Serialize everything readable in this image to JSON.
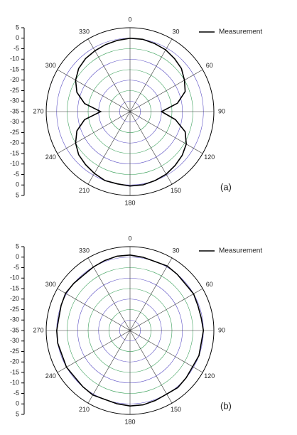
{
  "chart_data": [
    {
      "type": "polar",
      "panel_label": "(a)",
      "theta": [
        0,
        10,
        20,
        30,
        40,
        50,
        60,
        70,
        80,
        90,
        100,
        110,
        120,
        130,
        140,
        150,
        160,
        170,
        180,
        190,
        200,
        210,
        220,
        230,
        240,
        250,
        260,
        270,
        280,
        290,
        300,
        310,
        320,
        330,
        340,
        350
      ],
      "thetaticks": [
        0,
        30,
        60,
        90,
        120,
        150,
        180,
        210,
        240,
        270,
        300,
        330
      ],
      "rlim": [
        -35,
        5
      ],
      "rticks": [
        -35,
        -30,
        -25,
        -20,
        -15,
        -10,
        -5,
        0,
        5
      ],
      "grid": true,
      "series": [
        {
          "name": "Measurement",
          "color": "#000000",
          "values": [
            0,
            0,
            -0.5,
            -1,
            -2,
            -3,
            -5,
            -7,
            -12,
            -20,
            -13,
            -7,
            -4,
            -2.5,
            -1.5,
            -0.5,
            0,
            0.5,
            0.5,
            0,
            0,
            -1,
            -2,
            -3,
            -5,
            -8,
            -13,
            -21,
            -13,
            -8,
            -5,
            -3,
            -2,
            -1.5,
            -1,
            -0.5
          ]
        }
      ]
    },
    {
      "type": "polar",
      "panel_label": "(b)",
      "theta": [
        0,
        10,
        20,
        30,
        40,
        50,
        60,
        70,
        80,
        90,
        100,
        110,
        120,
        130,
        140,
        150,
        160,
        170,
        180,
        190,
        200,
        210,
        220,
        230,
        240,
        250,
        260,
        270,
        280,
        290,
        300,
        310,
        320,
        330,
        340,
        350
      ],
      "thetaticks": [
        0,
        30,
        60,
        90,
        120,
        150,
        180,
        210,
        240,
        270,
        300,
        330
      ],
      "rlim": [
        -35,
        5
      ],
      "rticks": [
        -35,
        -30,
        -25,
        -20,
        -15,
        -10,
        -5,
        0,
        5
      ],
      "grid": true,
      "series": [
        {
          "name": "Measurement",
          "color": "#000000",
          "values": [
            1,
            0.5,
            0,
            0.5,
            0,
            -0.5,
            0,
            -0.5,
            -0.5,
            0,
            -0.5,
            0,
            -0.5,
            0,
            0.5,
            0,
            0.5,
            1,
            1,
            0.5,
            0,
            0.5,
            0,
            -0.5,
            0,
            -0.5,
            0,
            0,
            -0.5,
            0,
            0.5,
            0,
            -0.5,
            0,
            0.5,
            1
          ]
        }
      ]
    }
  ]
}
